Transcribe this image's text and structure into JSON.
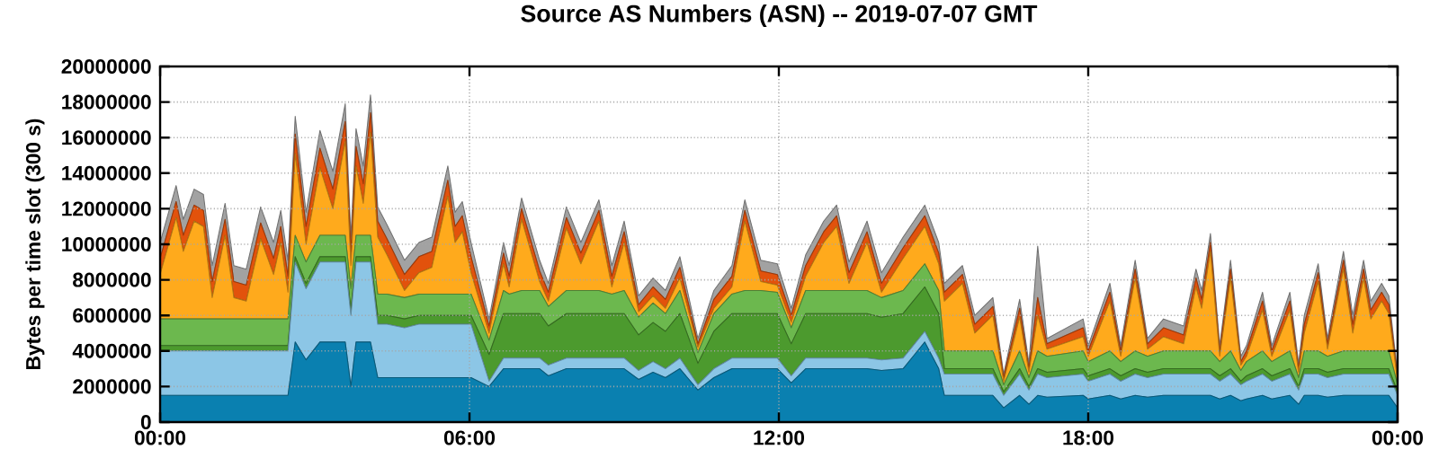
{
  "chart_data": {
    "type": "area",
    "stacked": true,
    "title": "Source AS Numbers (ASN) -- 2019-07-07 GMT",
    "ylabel": "Bytes per time slot (300 s)",
    "grid": true,
    "xlim": [
      0,
      24
    ],
    "ylim": [
      0,
      20000000
    ],
    "xticks": [
      {
        "value": 0,
        "label": "00:00"
      },
      {
        "value": 6,
        "label": "06:00"
      },
      {
        "value": 12,
        "label": "12:00"
      },
      {
        "value": 18,
        "label": "18:00"
      },
      {
        "value": 24,
        "label": "00:00"
      }
    ],
    "yticks": [
      0,
      2000000,
      4000000,
      6000000,
      8000000,
      10000000,
      12000000,
      14000000,
      16000000,
      18000000,
      20000000
    ],
    "x": [
      0,
      0.31,
      0.45,
      0.66,
      0.84,
      1.01,
      1.26,
      1.43,
      1.67,
      1.95,
      2.2,
      2.34,
      2.48,
      2.62,
      2.83,
      3.1,
      3.35,
      3.59,
      3.7,
      3.8,
      3.94,
      4.08,
      4.22,
      4.4,
      4.74,
      5.02,
      5.27,
      5.58,
      5.72,
      5.86,
      6.03,
      6.38,
      6.66,
      6.77,
      7.01,
      7.36,
      7.53,
      7.88,
      8.16,
      8.51,
      8.76,
      9,
      9.28,
      9.56,
      9.8,
      10.08,
      10.43,
      10.74,
      11.09,
      11.34,
      11.65,
      11.97,
      12.24,
      12.52,
      12.87,
      13.12,
      13.36,
      13.71,
      13.99,
      14.41,
      14.83,
      15.1,
      15.21,
      15.56,
      15.8,
      16.15,
      16.36,
      16.67,
      16.85,
      17.02,
      17.2,
      17.9,
      18,
      18.42,
      18.63,
      18.91,
      19.15,
      19.46,
      19.85,
      20.09,
      20.2,
      20.37,
      20.55,
      20.76,
      20.96,
      21.07,
      21.38,
      21.56,
      21.91,
      22.08,
      22.19,
      22.46,
      22.64,
      22.95,
      23.13,
      23.34,
      23.48,
      23.69,
      23.83,
      24
    ],
    "series": [
      {
        "color": "#0a80b0",
        "values": [
          1500000.0,
          1500000.0,
          1500000.0,
          1500000.0,
          1500000.0,
          1500000.0,
          1500000.0,
          1500000.0,
          1500000.0,
          1500000.0,
          1500000.0,
          1500000.0,
          1500000.0,
          4500000.0,
          3500000.0,
          4500000.0,
          4500000.0,
          4500000.0,
          2000000.0,
          4500000.0,
          4500000.0,
          4500000.0,
          2500000.0,
          2500000.0,
          2500000.0,
          2500000.0,
          2500000.0,
          2500000.0,
          2500000.0,
          2500000.0,
          2500000.0,
          2000000.0,
          3000000.0,
          3000000.0,
          3000000.0,
          3000000.0,
          2600000.0,
          3000000.0,
          3000000.0,
          3000000.0,
          3000000.0,
          3000000.0,
          2400000.0,
          2800000.0,
          2500000.0,
          3000000.0,
          1800000.0,
          2500000.0,
          3000000.0,
          3000000.0,
          3000000.0,
          3000000.0,
          2200000.0,
          3000000.0,
          3000000.0,
          3000000.0,
          3000000.0,
          3000000.0,
          2900000.0,
          3000000.0,
          4500000.0,
          3000000.0,
          1500000.0,
          1500000.0,
          1500000.0,
          1500000.0,
          800000.0,
          1500000.0,
          1000000.0,
          1500000.0,
          1400000.0,
          1500000.0,
          1300000.0,
          1500000.0,
          1300000.0,
          1500000.0,
          1400000.0,
          1500000.0,
          1500000.0,
          1500000.0,
          1500000.0,
          1500000.0,
          1300000.0,
          1500000.0,
          1200000.0,
          1300000.0,
          1500000.0,
          1300000.0,
          1500000.0,
          1000000.0,
          1500000.0,
          1500000.0,
          1400000.0,
          1500000.0,
          1500000.0,
          1500000.0,
          1500000.0,
          1500000.0,
          1500000.0,
          800000.0
        ]
      },
      {
        "color": "#8cc6e6",
        "values": [
          2500000.0,
          2500000.0,
          2500000.0,
          2500000.0,
          2500000.0,
          2500000.0,
          2500000.0,
          2500000.0,
          2500000.0,
          2500000.0,
          2500000.0,
          2500000.0,
          2500000.0,
          4500000.0,
          4000000.0,
          4500000.0,
          4500000.0,
          4500000.0,
          4000000.0,
          4500000.0,
          4500000.0,
          4500000.0,
          3000000.0,
          3000000.0,
          2800000.0,
          3000000.0,
          3000000.0,
          3000000.0,
          3000000.0,
          3000000.0,
          3000000.0,
          300000.0,
          600000.0,
          600000.0,
          600000.0,
          600000.0,
          600000.0,
          600000.0,
          600000.0,
          600000.0,
          600000.0,
          600000.0,
          500000.0,
          600000.0,
          500000.0,
          600000.0,
          300000.0,
          500000.0,
          600000.0,
          600000.0,
          600000.0,
          600000.0,
          400000.0,
          600000.0,
          600000.0,
          600000.0,
          600000.0,
          600000.0,
          600000.0,
          600000.0,
          600000.0,
          600000.0,
          1200000.0,
          1200000.0,
          1200000.0,
          1200000.0,
          700000.0,
          1200000.0,
          800000.0,
          1200000.0,
          1100000.0,
          1200000.0,
          1000000.0,
          1200000.0,
          1000000.0,
          1200000.0,
          1100000.0,
          1200000.0,
          1200000.0,
          1200000.0,
          1200000.0,
          1200000.0,
          1000000.0,
          1200000.0,
          900000.0,
          1000000.0,
          1200000.0,
          1000000.0,
          1200000.0,
          800000.0,
          1200000.0,
          1200000.0,
          1100000.0,
          1200000.0,
          1200000.0,
          1200000.0,
          1200000.0,
          1200000.0,
          1200000.0,
          700000.0
        ]
      },
      {
        "color": "#4c9a2e",
        "values": [
          300000.0,
          300000.0,
          300000.0,
          300000.0,
          300000.0,
          300000.0,
          300000.0,
          300000.0,
          300000.0,
          300000.0,
          300000.0,
          300000.0,
          300000.0,
          300000.0,
          300000.0,
          300000.0,
          300000.0,
          300000.0,
          300000.0,
          300000.0,
          300000.0,
          300000.0,
          500000.0,
          500000.0,
          500000.0,
          500000.0,
          500000.0,
          500000.0,
          500000.0,
          500000.0,
          500000.0,
          1500000.0,
          2500000.0,
          2500000.0,
          2500000.0,
          2500000.0,
          2200000.0,
          2500000.0,
          2500000.0,
          2500000.0,
          2500000.0,
          2500000.0,
          2000000.0,
          2200000.0,
          2100000.0,
          2500000.0,
          1200000.0,
          2100000.0,
          2500000.0,
          2500000.0,
          2500000.0,
          2500000.0,
          1800000.0,
          2500000.0,
          2500000.0,
          2500000.0,
          2500000.0,
          2500000.0,
          2400000.0,
          2500000.0,
          2500000.0,
          2500000.0,
          300000.0,
          300000.0,
          300000.0,
          300000.0,
          200000.0,
          300000.0,
          200000.0,
          300000.0,
          300000.0,
          300000.0,
          300000.0,
          300000.0,
          300000.0,
          300000.0,
          300000.0,
          300000.0,
          300000.0,
          300000.0,
          300000.0,
          300000.0,
          300000.0,
          300000.0,
          200000.0,
          300000.0,
          300000.0,
          300000.0,
          300000.0,
          200000.0,
          300000.0,
          300000.0,
          300000.0,
          300000.0,
          300000.0,
          300000.0,
          300000.0,
          300000.0,
          300000.0,
          200000.0
        ]
      },
      {
        "color": "#6cb84e",
        "values": [
          1500000.0,
          1500000.0,
          1500000.0,
          1500000.0,
          1500000.0,
          1500000.0,
          1500000.0,
          1500000.0,
          1500000.0,
          1500000.0,
          1500000.0,
          1500000.0,
          1500000.0,
          1200000.0,
          1200000.0,
          1200000.0,
          1200000.0,
          1200000.0,
          1200000.0,
          1200000.0,
          1200000.0,
          1200000.0,
          1200000.0,
          1200000.0,
          1200000.0,
          1200000.0,
          1200000.0,
          1200000.0,
          1200000.0,
          1200000.0,
          1200000.0,
          800000.0,
          1300000.0,
          1100000.0,
          1300000.0,
          1300000.0,
          1100000.0,
          1300000.0,
          1300000.0,
          1300000.0,
          1100000.0,
          1300000.0,
          1000000.0,
          1100000.0,
          1000000.0,
          1300000.0,
          600000.0,
          1000000.0,
          1100000.0,
          1300000.0,
          1300000.0,
          1200000.0,
          900000.0,
          1300000.0,
          1300000.0,
          1300000.0,
          1300000.0,
          1300000.0,
          1100000.0,
          1300000.0,
          1300000.0,
          1300000.0,
          1000000.0,
          1000000.0,
          1000000.0,
          1000000.0,
          400000.0,
          1000000.0,
          500000.0,
          1000000.0,
          900000.0,
          1000000.0,
          800000.0,
          1000000.0,
          800000.0,
          1000000.0,
          900000.0,
          1000000.0,
          1000000.0,
          1000000.0,
          1000000.0,
          1000000.0,
          800000.0,
          1000000.0,
          600000.0,
          800000.0,
          1000000.0,
          800000.0,
          1000000.0,
          500000.0,
          1000000.0,
          1000000.0,
          900000.0,
          1000000.0,
          1000000.0,
          1000000.0,
          1000000.0,
          1000000.0,
          1000000.0,
          400000.0
        ]
      },
      {
        "color": "#ffaa1c",
        "values": [
          2500000.0,
          5700000.0,
          3800000.0,
          5500000.0,
          5200000.0,
          1200000.0,
          4700000.0,
          1200000.0,
          1000000.0,
          4500000.0,
          2500000.0,
          4300000.0,
          1500000.0,
          4600000.0,
          1000000.0,
          3800000.0,
          1500000.0,
          5300000.0,
          1300000.0,
          3900000.0,
          1800000.0,
          5800000.0,
          3200000.0,
          2200000.0,
          400000.0,
          1200000.0,
          1500000.0,
          5500000.0,
          2900000.0,
          3500000.0,
          1200000.0,
          400000.0,
          1500000.0,
          400000.0,
          4000000.0,
          500000.0,
          300000.0,
          3500000.0,
          1500000.0,
          3900000.0,
          400000.0,
          2700000.0,
          300000.0,
          400000.0,
          300000.0,
          700000.0,
          300000.0,
          300000.0,
          400000.0,
          3900000.0,
          500000.0,
          400000.0,
          300000.0,
          800000.0,
          2700000.0,
          3600000.0,
          400000.0,
          2700000.0,
          300000.0,
          1800000.0,
          2100000.0,
          1500000.0,
          2800000.0,
          3800000.0,
          1000000.0,
          2000000.0,
          200000.0,
          1900000.0,
          300000.0,
          2000000.0,
          400000.0,
          800000.0,
          300000.0,
          2800000.0,
          300000.0,
          4100000.0,
          400000.0,
          800000.0,
          400000.0,
          3600000.0,
          2400000.0,
          5600000.0,
          300000.0,
          4100000.0,
          300000.0,
          300000.0,
          2300000.0,
          300000.0,
          2300000.0,
          300000.0,
          1000000.0,
          3900000.0,
          400000.0,
          4600000.0,
          1000000.0,
          4100000.0,
          1800000.0,
          2800000.0,
          2100000.0,
          200000.0
        ]
      },
      {
        "color": "#e2520c",
        "values": [
          900000.0,
          900000.0,
          900000.0,
          900000.0,
          900000.0,
          900000.0,
          900000.0,
          900000.0,
          900000.0,
          900000.0,
          900000.0,
          900000.0,
          900000.0,
          1100000.0,
          1000000.0,
          1100000.0,
          1100000.0,
          1100000.0,
          800000.0,
          1100000.0,
          1100000.0,
          1100000.0,
          900000.0,
          900000.0,
          900000.0,
          900000.0,
          900000.0,
          900000.0,
          900000.0,
          900000.0,
          900000.0,
          400000.0,
          600000.0,
          600000.0,
          600000.0,
          600000.0,
          500000.0,
          600000.0,
          600000.0,
          600000.0,
          600000.0,
          600000.0,
          400000.0,
          500000.0,
          500000.0,
          600000.0,
          200000.0,
          500000.0,
          600000.0,
          600000.0,
          600000.0,
          600000.0,
          400000.0,
          600000.0,
          600000.0,
          600000.0,
          600000.0,
          600000.0,
          500000.0,
          600000.0,
          600000.0,
          600000.0,
          500000.0,
          500000.0,
          500000.0,
          500000.0,
          200000.0,
          500000.0,
          200000.0,
          1000000.0,
          300000.0,
          500000.0,
          300000.0,
          500000.0,
          300000.0,
          500000.0,
          300000.0,
          500000.0,
          500000.0,
          500000.0,
          500000.0,
          500000.0,
          300000.0,
          500000.0,
          200000.0,
          300000.0,
          500000.0,
          300000.0,
          500000.0,
          200000.0,
          500000.0,
          500000.0,
          300000.0,
          500000.0,
          500000.0,
          500000.0,
          500000.0,
          500000.0,
          500000.0,
          200000.0
        ]
      },
      {
        "color": "#a2a2a2",
        "values": [
          900000.0,
          900000.0,
          900000.0,
          900000.0,
          900000.0,
          900000.0,
          900000.0,
          900000.0,
          900000.0,
          900000.0,
          900000.0,
          900000.0,
          900000.0,
          1000000.0,
          800000.0,
          1000000.0,
          1000000.0,
          1000000.0,
          800000.0,
          1000000.0,
          1000000.0,
          1000000.0,
          800000.0,
          800000.0,
          800000.0,
          800000.0,
          800000.0,
          800000.0,
          800000.0,
          800000.0,
          800000.0,
          400000.0,
          600000.0,
          600000.0,
          600000.0,
          600000.0,
          500000.0,
          600000.0,
          600000.0,
          600000.0,
          600000.0,
          600000.0,
          500000.0,
          500000.0,
          500000.0,
          600000.0,
          300000.0,
          500000.0,
          600000.0,
          600000.0,
          600000.0,
          600000.0,
          400000.0,
          600000.0,
          600000.0,
          600000.0,
          600000.0,
          600000.0,
          600000.0,
          600000.0,
          600000.0,
          600000.0,
          500000.0,
          500000.0,
          500000.0,
          500000.0,
          200000.0,
          500000.0,
          300000.0,
          2900000.0,
          300000.0,
          500000.0,
          300000.0,
          500000.0,
          300000.0,
          500000.0,
          300000.0,
          500000.0,
          500000.0,
          500000.0,
          500000.0,
          500000.0,
          300000.0,
          500000.0,
          300000.0,
          300000.0,
          500000.0,
          300000.0,
          500000.0,
          300000.0,
          500000.0,
          500000.0,
          300000.0,
          500000.0,
          500000.0,
          500000.0,
          500000.0,
          500000.0,
          500000.0,
          200000.0
        ]
      }
    ]
  }
}
